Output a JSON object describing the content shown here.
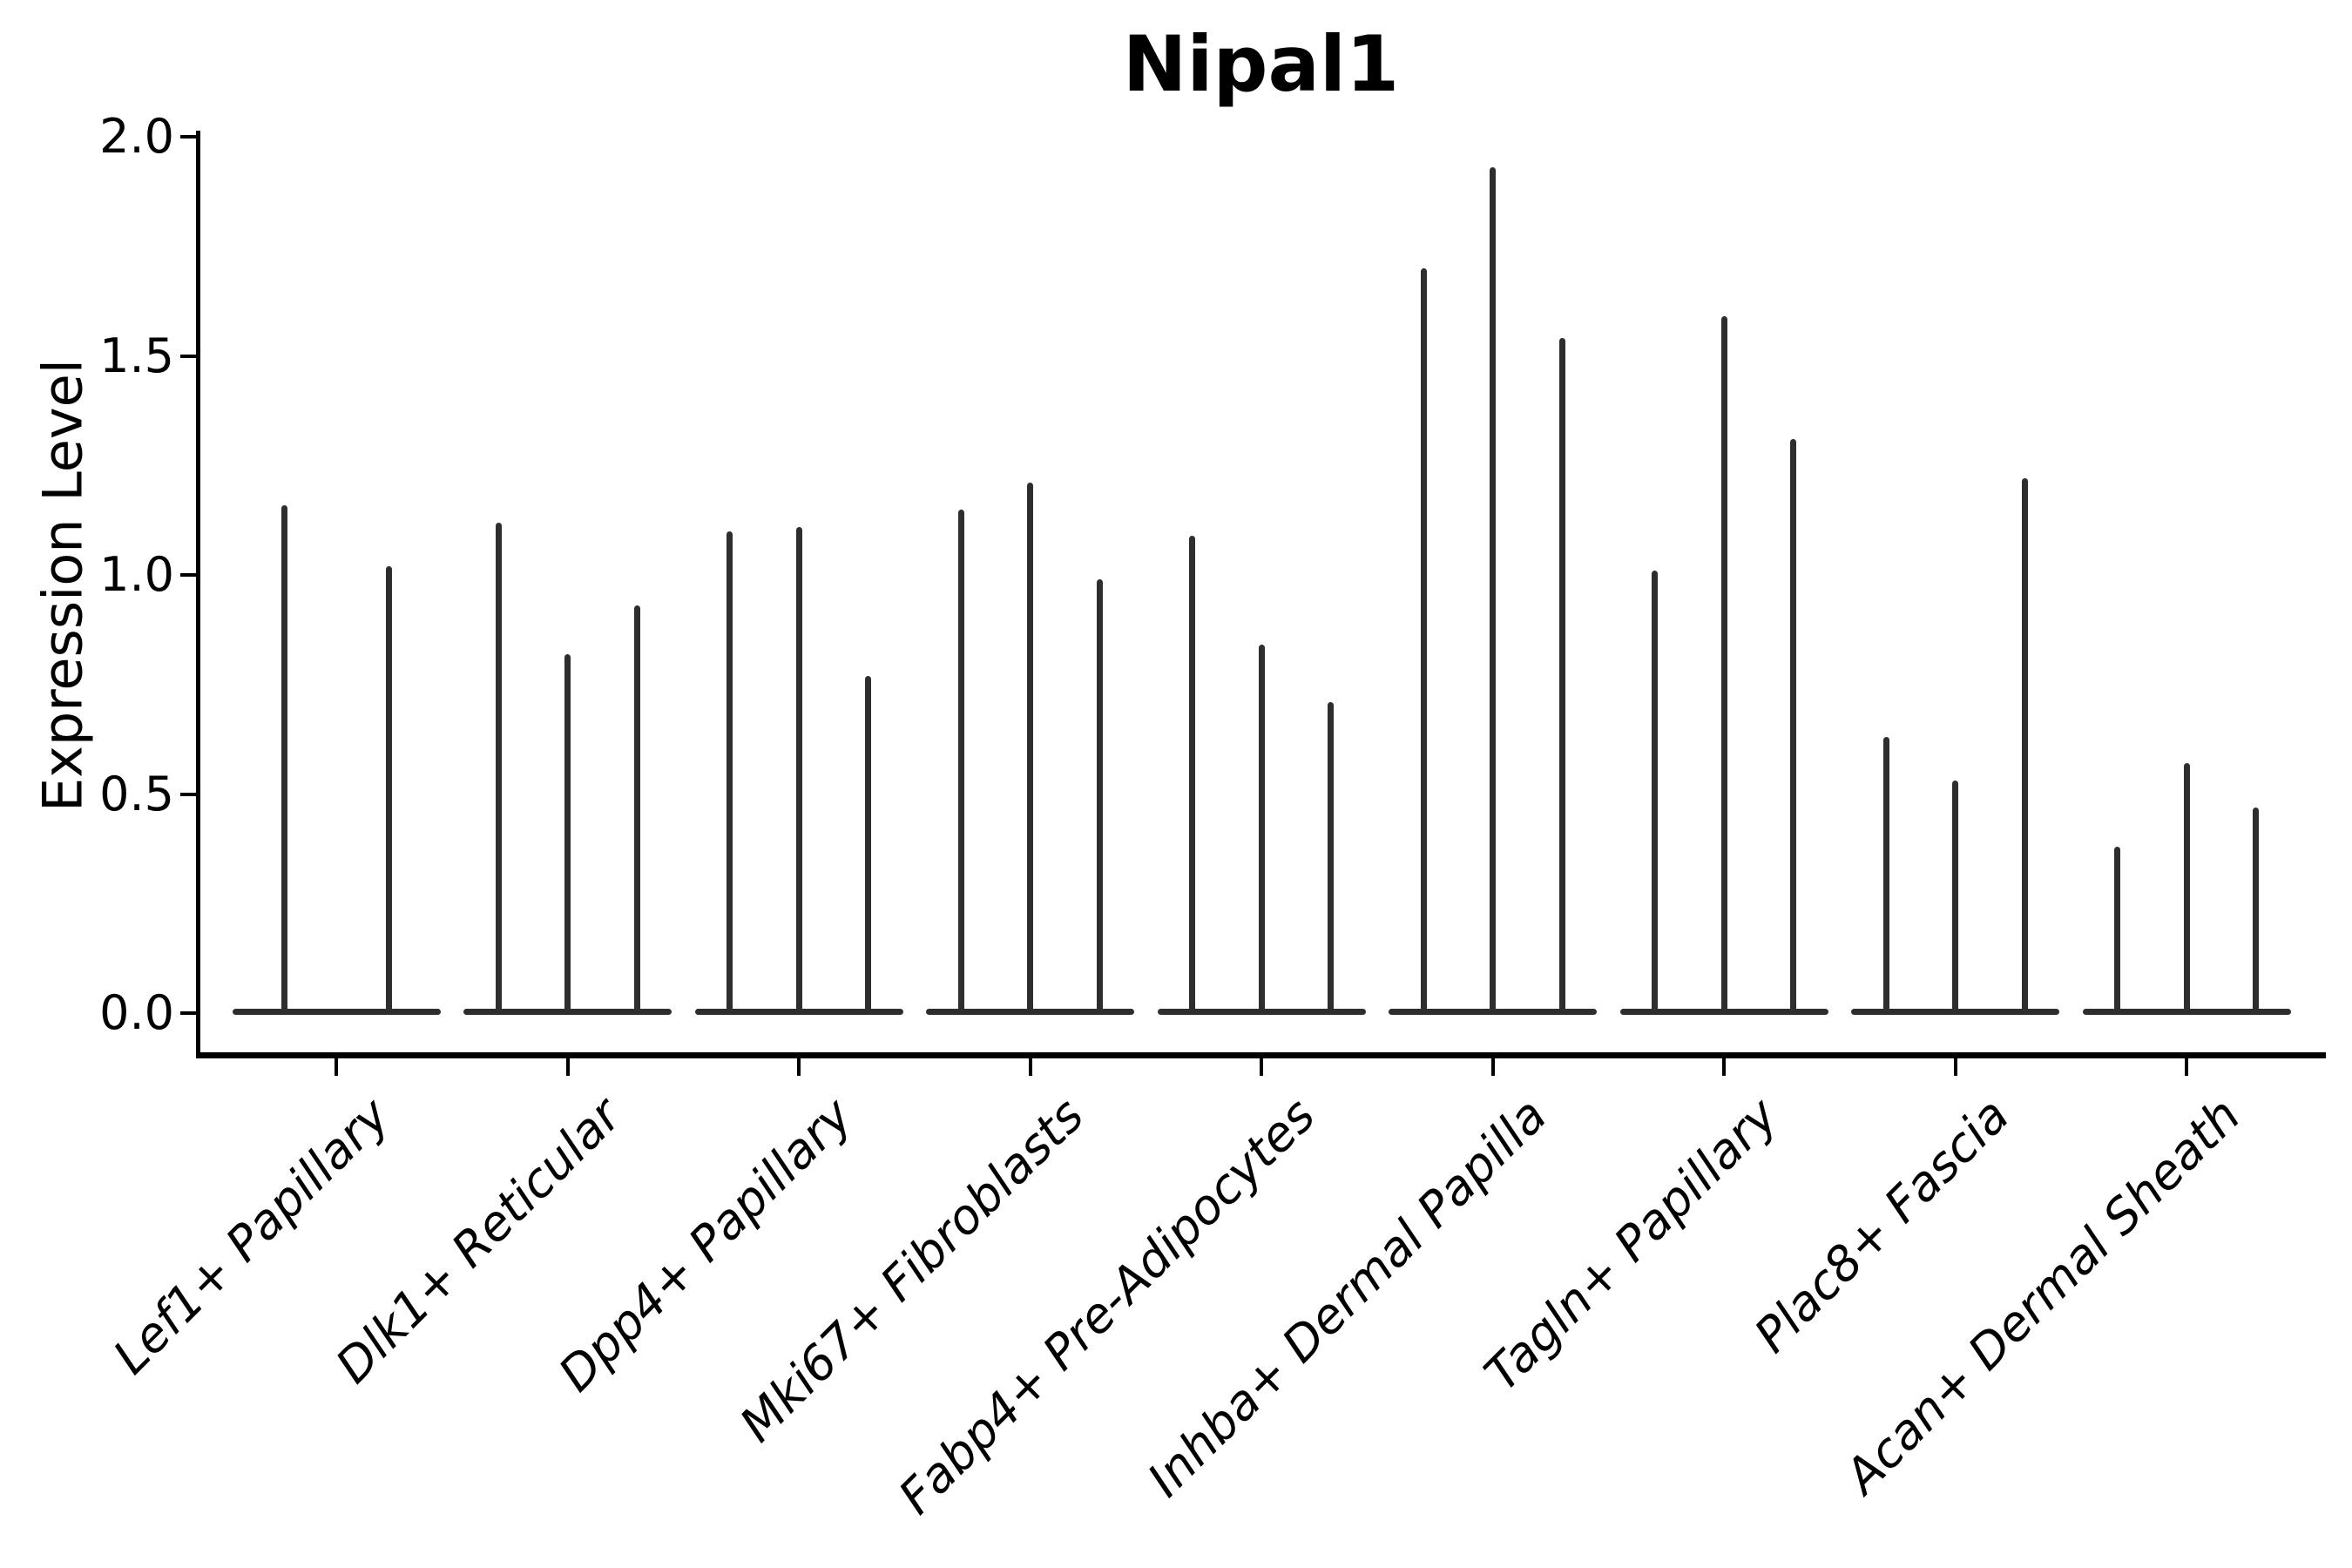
{
  "title": "Nipal1",
  "y_axis": {
    "label": "Expression Level",
    "tick_labels": [
      "0.0",
      "0.5",
      "1.0",
      "1.5",
      "2.0"
    ]
  },
  "chart_data": {
    "type": "violin",
    "title": "Nipal1",
    "xlabel": "",
    "ylabel": "Expression Level",
    "ylim": [
      0,
      2
    ],
    "yticks": [
      0,
      0.5,
      1,
      1.5,
      2
    ],
    "grid": false,
    "legend": false,
    "violin_style": "narrow vertical spikes rising from a flat base at y=0; 2-3 violins per category",
    "categories": [
      "Lef1+ Papillary",
      "Dlk1+ Reticular",
      "Dpp4+ Papillary",
      "Mki67+ Fibroblasts",
      "Fabp4+ Pre-Adipocytes",
      "Inhba+ Dermal Papilla",
      "Tagln+ Papillary",
      "Plac8+ Fascia",
      "Acan+ Dermal Sheath"
    ],
    "series": [
      {
        "category": "Lef1+ Papillary",
        "violin_peaks": [
          1.16,
          1.02
        ]
      },
      {
        "category": "Dlk1+ Reticular",
        "violin_peaks": [
          1.12,
          0.82,
          0.93
        ]
      },
      {
        "category": "Dpp4+ Papillary",
        "violin_peaks": [
          1.1,
          1.11,
          0.77
        ]
      },
      {
        "category": "Mki67+ Fibroblasts",
        "violin_peaks": [
          1.15,
          1.21,
          0.99
        ]
      },
      {
        "category": "Fabp4+ Pre-Adipocytes",
        "violin_peaks": [
          1.09,
          0.84,
          0.71
        ]
      },
      {
        "category": "Inhba+ Dermal Papilla",
        "violin_peaks": [
          1.7,
          1.93,
          1.54
        ]
      },
      {
        "category": "Tagln+ Papillary",
        "violin_peaks": [
          1.01,
          1.59,
          1.31
        ]
      },
      {
        "category": "Plac8+ Fascia",
        "violin_peaks": [
          0.63,
          0.53,
          1.22
        ]
      },
      {
        "category": "Acan+ Dermal Sheath",
        "violin_peaks": [
          0.38,
          0.57,
          0.47
        ]
      }
    ],
    "colors": {
      "violin": "#2e2e2e",
      "axis": "#000000",
      "text": "#000000",
      "background": "#ffffff"
    }
  }
}
